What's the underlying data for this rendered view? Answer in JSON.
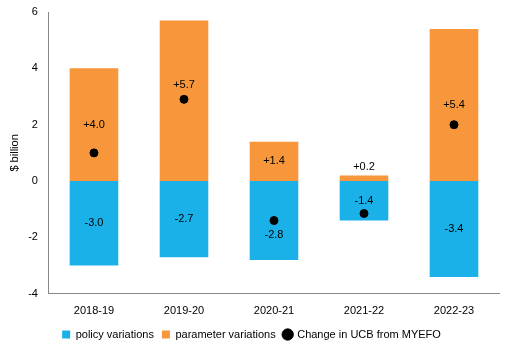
{
  "chart_data": {
    "type": "bar",
    "categories": [
      "2018-19",
      "2019-20",
      "2020-21",
      "2021-22",
      "2022-23"
    ],
    "ylabel": "$ billion",
    "ylim": [
      -4,
      6
    ],
    "yticks": [
      -4,
      -2,
      0,
      2,
      4,
      6
    ],
    "grid": false,
    "stacked": true,
    "data_labels": true,
    "legend": "bottom",
    "series": [
      {
        "name": "policy variations",
        "type": "bar",
        "color": "#1ab0e8",
        "values": [
          -3.0,
          -2.7,
          -2.8,
          -1.4,
          -3.4
        ],
        "value_labels": [
          "-3.0",
          "-2.7",
          "-2.8",
          "-1.4",
          "-3.4"
        ]
      },
      {
        "name": "parameter variations",
        "type": "bar",
        "color": "#f7963a",
        "values": [
          4.0,
          5.7,
          1.4,
          0.2,
          5.4
        ],
        "value_labels": [
          "+4.0",
          "+5.7",
          "+1.4",
          "+0.2",
          "+5.4"
        ]
      },
      {
        "name": "Change in UCB from MYEFO",
        "type": "scatter",
        "marker": "circle",
        "color": "#000000",
        "values": [
          1.0,
          2.9,
          -1.4,
          -1.15,
          2.0
        ]
      }
    ]
  }
}
